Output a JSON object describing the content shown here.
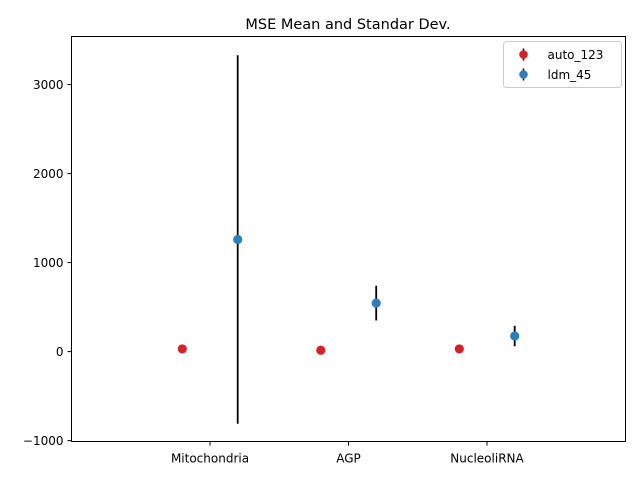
{
  "chart_data": {
    "type": "scatter",
    "title": "MSE Mean and Standar Dev.",
    "xlabel": "",
    "ylabel": "",
    "categories": [
      "Mitochondria",
      "AGP",
      "NucleoliRNA"
    ],
    "ylim": [
      -1010,
      3540
    ],
    "yticks": [
      -1000,
      0,
      1000,
      2000,
      3000
    ],
    "ytick_labels": [
      "−1000",
      "0",
      "1000",
      "2000",
      "3000"
    ],
    "grid": false,
    "legend_position": "top-right",
    "series": [
      {
        "name": "auto_123",
        "color": "#d62027",
        "offset": "left",
        "values": [
          30,
          15,
          30
        ],
        "std": [
          0,
          0,
          0
        ]
      },
      {
        "name": "ldm_45",
        "color": "#2e7ebc",
        "offset": "right",
        "values": [
          1260,
          545,
          175
        ],
        "std": [
          2070,
          195,
          115
        ]
      }
    ]
  }
}
